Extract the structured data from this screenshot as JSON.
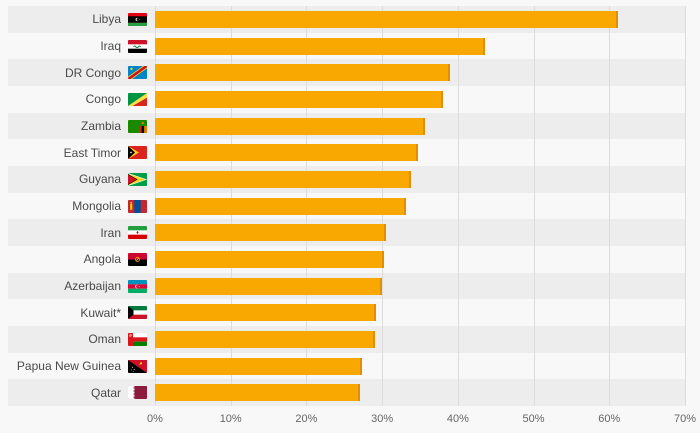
{
  "chart_data": {
    "type": "bar",
    "orientation": "horizontal",
    "title": "",
    "xlabel": "",
    "ylabel": "",
    "categories": [
      "Libya",
      "Iraq",
      "DR Congo",
      "Congo",
      "Zambia",
      "East Timor",
      "Guyana",
      "Mongolia",
      "Iran",
      "Angola",
      "Azerbaijan",
      "Kuwait*",
      "Oman",
      "Papua New Guinea",
      "Qatar"
    ],
    "values": [
      61.1,
      43.6,
      39.0,
      38.0,
      35.6,
      34.8,
      33.8,
      33.2,
      30.5,
      30.2,
      30.0,
      29.2,
      29.1,
      27.4,
      27.1
    ],
    "value_unit": "%",
    "xlim": [
      0,
      70
    ],
    "x_tick_labels": [
      "0%",
      "10%",
      "20%",
      "30%",
      "40%",
      "50%",
      "60%",
      "70%"
    ],
    "grid": true,
    "legend": "none",
    "bar_color": "#f8a800",
    "bar_edge_color": "#df8f00",
    "row_stripe_color": "#ededed",
    "background_color": "#f8f8f8",
    "gridline_color": "#dcdcdc"
  },
  "icons": {
    "flags": [
      "flag-libya-icon",
      "flag-iraq-icon",
      "flag-dr-congo-icon",
      "flag-congo-icon",
      "flag-zambia-icon",
      "flag-east-timor-icon",
      "flag-guyana-icon",
      "flag-mongolia-icon",
      "flag-iran-icon",
      "flag-angola-icon",
      "flag-azerbaijan-icon",
      "flag-kuwait-icon",
      "flag-oman-icon",
      "flag-papua-new-guinea-icon",
      "flag-qatar-icon"
    ]
  }
}
